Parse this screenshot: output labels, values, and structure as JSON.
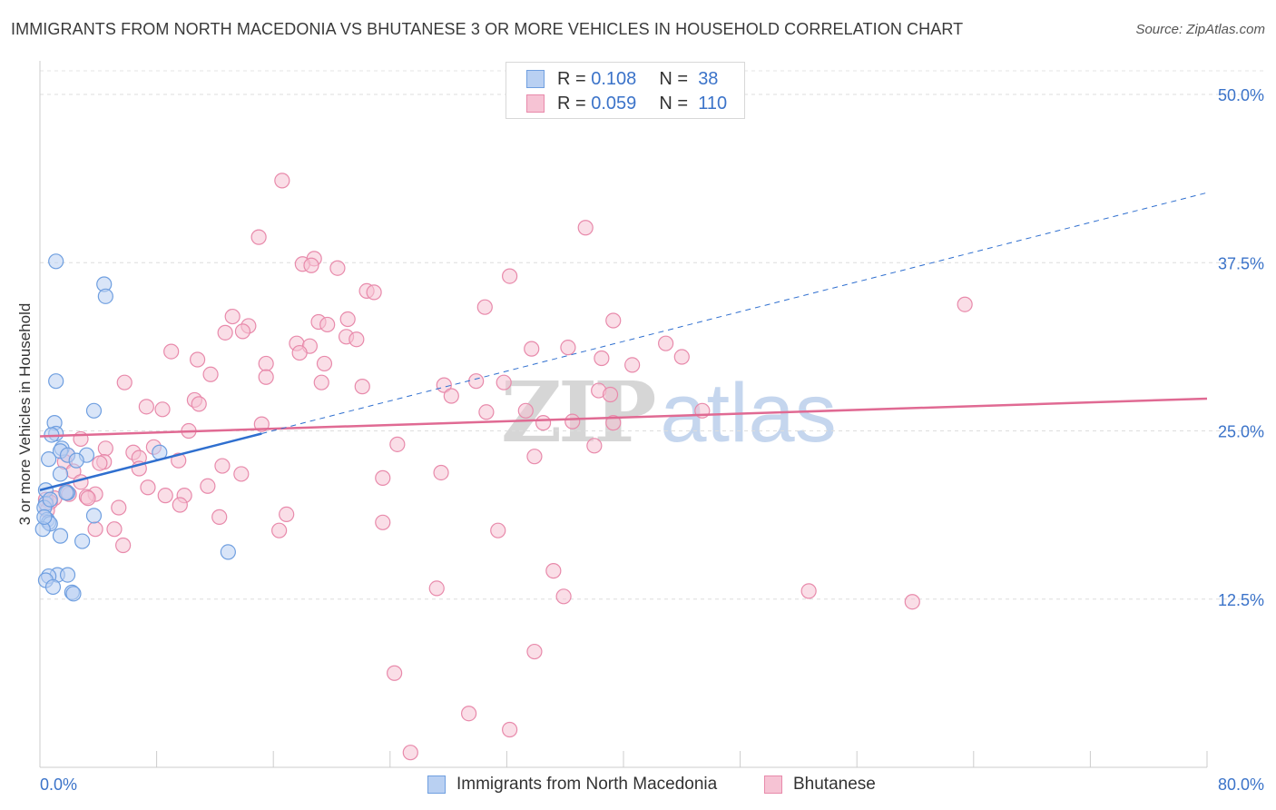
{
  "title": "IMMIGRANTS FROM NORTH MACEDONIA VS BHUTANESE 3 OR MORE VEHICLES IN HOUSEHOLD CORRELATION CHART",
  "source": "Source: ZipAtlas.com",
  "watermark": {
    "zip": "ZIP",
    "atlas": "atlas"
  },
  "legend": {
    "rows": [
      {
        "r_label": "R =",
        "r_value": "0.108",
        "n_label": "N =",
        "n_value": "38"
      },
      {
        "r_label": "R =",
        "r_value": "0.059",
        "n_label": "N =",
        "n_value": "110"
      }
    ]
  },
  "chart_data": {
    "type": "scatter",
    "title": "IMMIGRANTS FROM NORTH MACEDONIA VS BHUTANESE 3 OR MORE VEHICLES IN HOUSEHOLD CORRELATION CHART",
    "xlabel": "",
    "ylabel": "3 or more Vehicles in Household",
    "xlim": [
      0,
      80
    ],
    "ylim": [
      0,
      52.5
    ],
    "x_tick_labels": [
      "0.0%",
      "80.0%"
    ],
    "y_ticks": [
      12.5,
      25.0,
      37.5,
      50.0
    ],
    "y_tick_labels": [
      "12.5%",
      "25.0%",
      "37.5%",
      "50.0%"
    ],
    "grid": true,
    "legend_position": "top-center",
    "series": [
      {
        "name": "Immigrants from North Macedonia",
        "color": "#6f9fe0",
        "fill": "#b9d0f2",
        "line_color": "#2f6fcf",
        "R": 0.108,
        "N": 38,
        "trend": {
          "x": [
            0.0,
            15.2
          ],
          "y": [
            20.6,
            24.8
          ],
          "dashed_extension": {
            "x": [
              15.2,
              80.0
            ],
            "y": [
              24.8,
              42.7
            ]
          }
        },
        "points": [
          [
            1.1,
            37.6
          ],
          [
            4.4,
            35.9
          ],
          [
            4.5,
            35.0
          ],
          [
            1.1,
            28.7
          ],
          [
            3.7,
            26.5
          ],
          [
            1.0,
            25.6
          ],
          [
            1.1,
            24.8
          ],
          [
            0.8,
            24.7
          ],
          [
            1.5,
            23.7
          ],
          [
            1.4,
            23.5
          ],
          [
            1.9,
            23.2
          ],
          [
            3.2,
            23.2
          ],
          [
            8.2,
            23.4
          ],
          [
            2.5,
            22.8
          ],
          [
            0.6,
            22.9
          ],
          [
            1.4,
            21.8
          ],
          [
            1.9,
            20.4
          ],
          [
            1.8,
            20.4
          ],
          [
            0.4,
            20.6
          ],
          [
            0.4,
            19.6
          ],
          [
            0.3,
            19.3
          ],
          [
            3.7,
            18.7
          ],
          [
            0.5,
            18.4
          ],
          [
            0.6,
            18.2
          ],
          [
            0.7,
            18.1
          ],
          [
            0.2,
            17.7
          ],
          [
            1.4,
            17.2
          ],
          [
            2.9,
            16.8
          ],
          [
            12.9,
            16.0
          ],
          [
            1.2,
            14.3
          ],
          [
            1.9,
            14.3
          ],
          [
            0.6,
            14.2
          ],
          [
            0.4,
            13.9
          ],
          [
            0.9,
            13.4
          ],
          [
            2.2,
            13.0
          ],
          [
            2.3,
            12.9
          ],
          [
            0.3,
            18.6
          ],
          [
            0.7,
            19.9
          ]
        ]
      },
      {
        "name": "Bhutanese",
        "color": "#e88aab",
        "fill": "#f6c3d4",
        "line_color": "#e06a93",
        "R": 0.059,
        "N": 110,
        "trend": {
          "x": [
            0.0,
            80.0
          ],
          "y": [
            24.6,
            27.4
          ]
        },
        "points": [
          [
            16.6,
            43.6
          ],
          [
            37.4,
            40.1
          ],
          [
            15.0,
            39.4
          ],
          [
            18.8,
            37.8
          ],
          [
            18.0,
            37.4
          ],
          [
            18.6,
            37.3
          ],
          [
            20.4,
            37.1
          ],
          [
            32.2,
            36.5
          ],
          [
            22.4,
            35.4
          ],
          [
            22.9,
            35.3
          ],
          [
            30.5,
            34.2
          ],
          [
            63.4,
            34.4
          ],
          [
            13.2,
            33.5
          ],
          [
            19.1,
            33.1
          ],
          [
            21.1,
            33.3
          ],
          [
            39.3,
            33.2
          ],
          [
            14.3,
            32.8
          ],
          [
            19.7,
            32.9
          ],
          [
            13.9,
            32.4
          ],
          [
            12.7,
            32.3
          ],
          [
            21.0,
            32.0
          ],
          [
            17.6,
            31.5
          ],
          [
            18.5,
            31.3
          ],
          [
            21.7,
            31.8
          ],
          [
            33.7,
            31.1
          ],
          [
            36.2,
            31.2
          ],
          [
            42.9,
            31.5
          ],
          [
            9.0,
            30.9
          ],
          [
            17.8,
            30.8
          ],
          [
            10.8,
            30.3
          ],
          [
            44.0,
            30.5
          ],
          [
            38.5,
            30.4
          ],
          [
            15.5,
            30.0
          ],
          [
            40.6,
            29.9
          ],
          [
            19.5,
            30.0
          ],
          [
            11.7,
            29.2
          ],
          [
            15.5,
            29.0
          ],
          [
            5.8,
            28.6
          ],
          [
            19.3,
            28.6
          ],
          [
            22.1,
            28.3
          ],
          [
            29.9,
            28.7
          ],
          [
            31.8,
            28.6
          ],
          [
            27.7,
            28.4
          ],
          [
            38.3,
            28.0
          ],
          [
            39.1,
            27.7
          ],
          [
            28.2,
            27.6
          ],
          [
            10.6,
            27.3
          ],
          [
            10.9,
            27.0
          ],
          [
            7.3,
            26.8
          ],
          [
            8.4,
            26.6
          ],
          [
            30.6,
            26.4
          ],
          [
            33.3,
            26.5
          ],
          [
            45.4,
            26.5
          ],
          [
            15.2,
            25.5
          ],
          [
            34.5,
            25.6
          ],
          [
            36.5,
            25.7
          ],
          [
            39.3,
            25.6
          ],
          [
            10.2,
            25.0
          ],
          [
            2.8,
            24.4
          ],
          [
            38.0,
            23.9
          ],
          [
            24.5,
            24.0
          ],
          [
            7.8,
            23.8
          ],
          [
            4.5,
            23.7
          ],
          [
            6.4,
            23.4
          ],
          [
            1.9,
            23.2
          ],
          [
            33.9,
            23.1
          ],
          [
            6.8,
            23.0
          ],
          [
            4.4,
            22.7
          ],
          [
            1.7,
            22.7
          ],
          [
            9.5,
            22.8
          ],
          [
            4.1,
            22.6
          ],
          [
            12.5,
            22.4
          ],
          [
            6.8,
            22.2
          ],
          [
            2.3,
            22.0
          ],
          [
            13.8,
            21.8
          ],
          [
            27.5,
            21.9
          ],
          [
            23.5,
            21.5
          ],
          [
            2.8,
            21.2
          ],
          [
            11.5,
            20.9
          ],
          [
            7.4,
            20.8
          ],
          [
            1.8,
            20.5
          ],
          [
            2.0,
            20.3
          ],
          [
            3.8,
            20.3
          ],
          [
            8.6,
            20.2
          ],
          [
            9.9,
            20.2
          ],
          [
            3.2,
            20.1
          ],
          [
            3.3,
            20.0
          ],
          [
            1.0,
            20.0
          ],
          [
            0.4,
            19.9
          ],
          [
            0.7,
            19.7
          ],
          [
            9.6,
            19.5
          ],
          [
            5.4,
            19.3
          ],
          [
            0.5,
            19.1
          ],
          [
            12.3,
            18.6
          ],
          [
            16.9,
            18.8
          ],
          [
            23.5,
            18.2
          ],
          [
            31.4,
            17.6
          ],
          [
            3.8,
            17.7
          ],
          [
            5.1,
            17.7
          ],
          [
            16.4,
            17.6
          ],
          [
            5.7,
            16.5
          ],
          [
            35.2,
            14.6
          ],
          [
            27.2,
            13.3
          ],
          [
            35.9,
            12.7
          ],
          [
            52.7,
            13.1
          ],
          [
            59.8,
            12.3
          ],
          [
            33.9,
            8.6
          ],
          [
            24.3,
            7.0
          ],
          [
            29.4,
            4.0
          ],
          [
            32.2,
            2.8
          ],
          [
            25.4,
            1.1
          ]
        ]
      }
    ]
  }
}
